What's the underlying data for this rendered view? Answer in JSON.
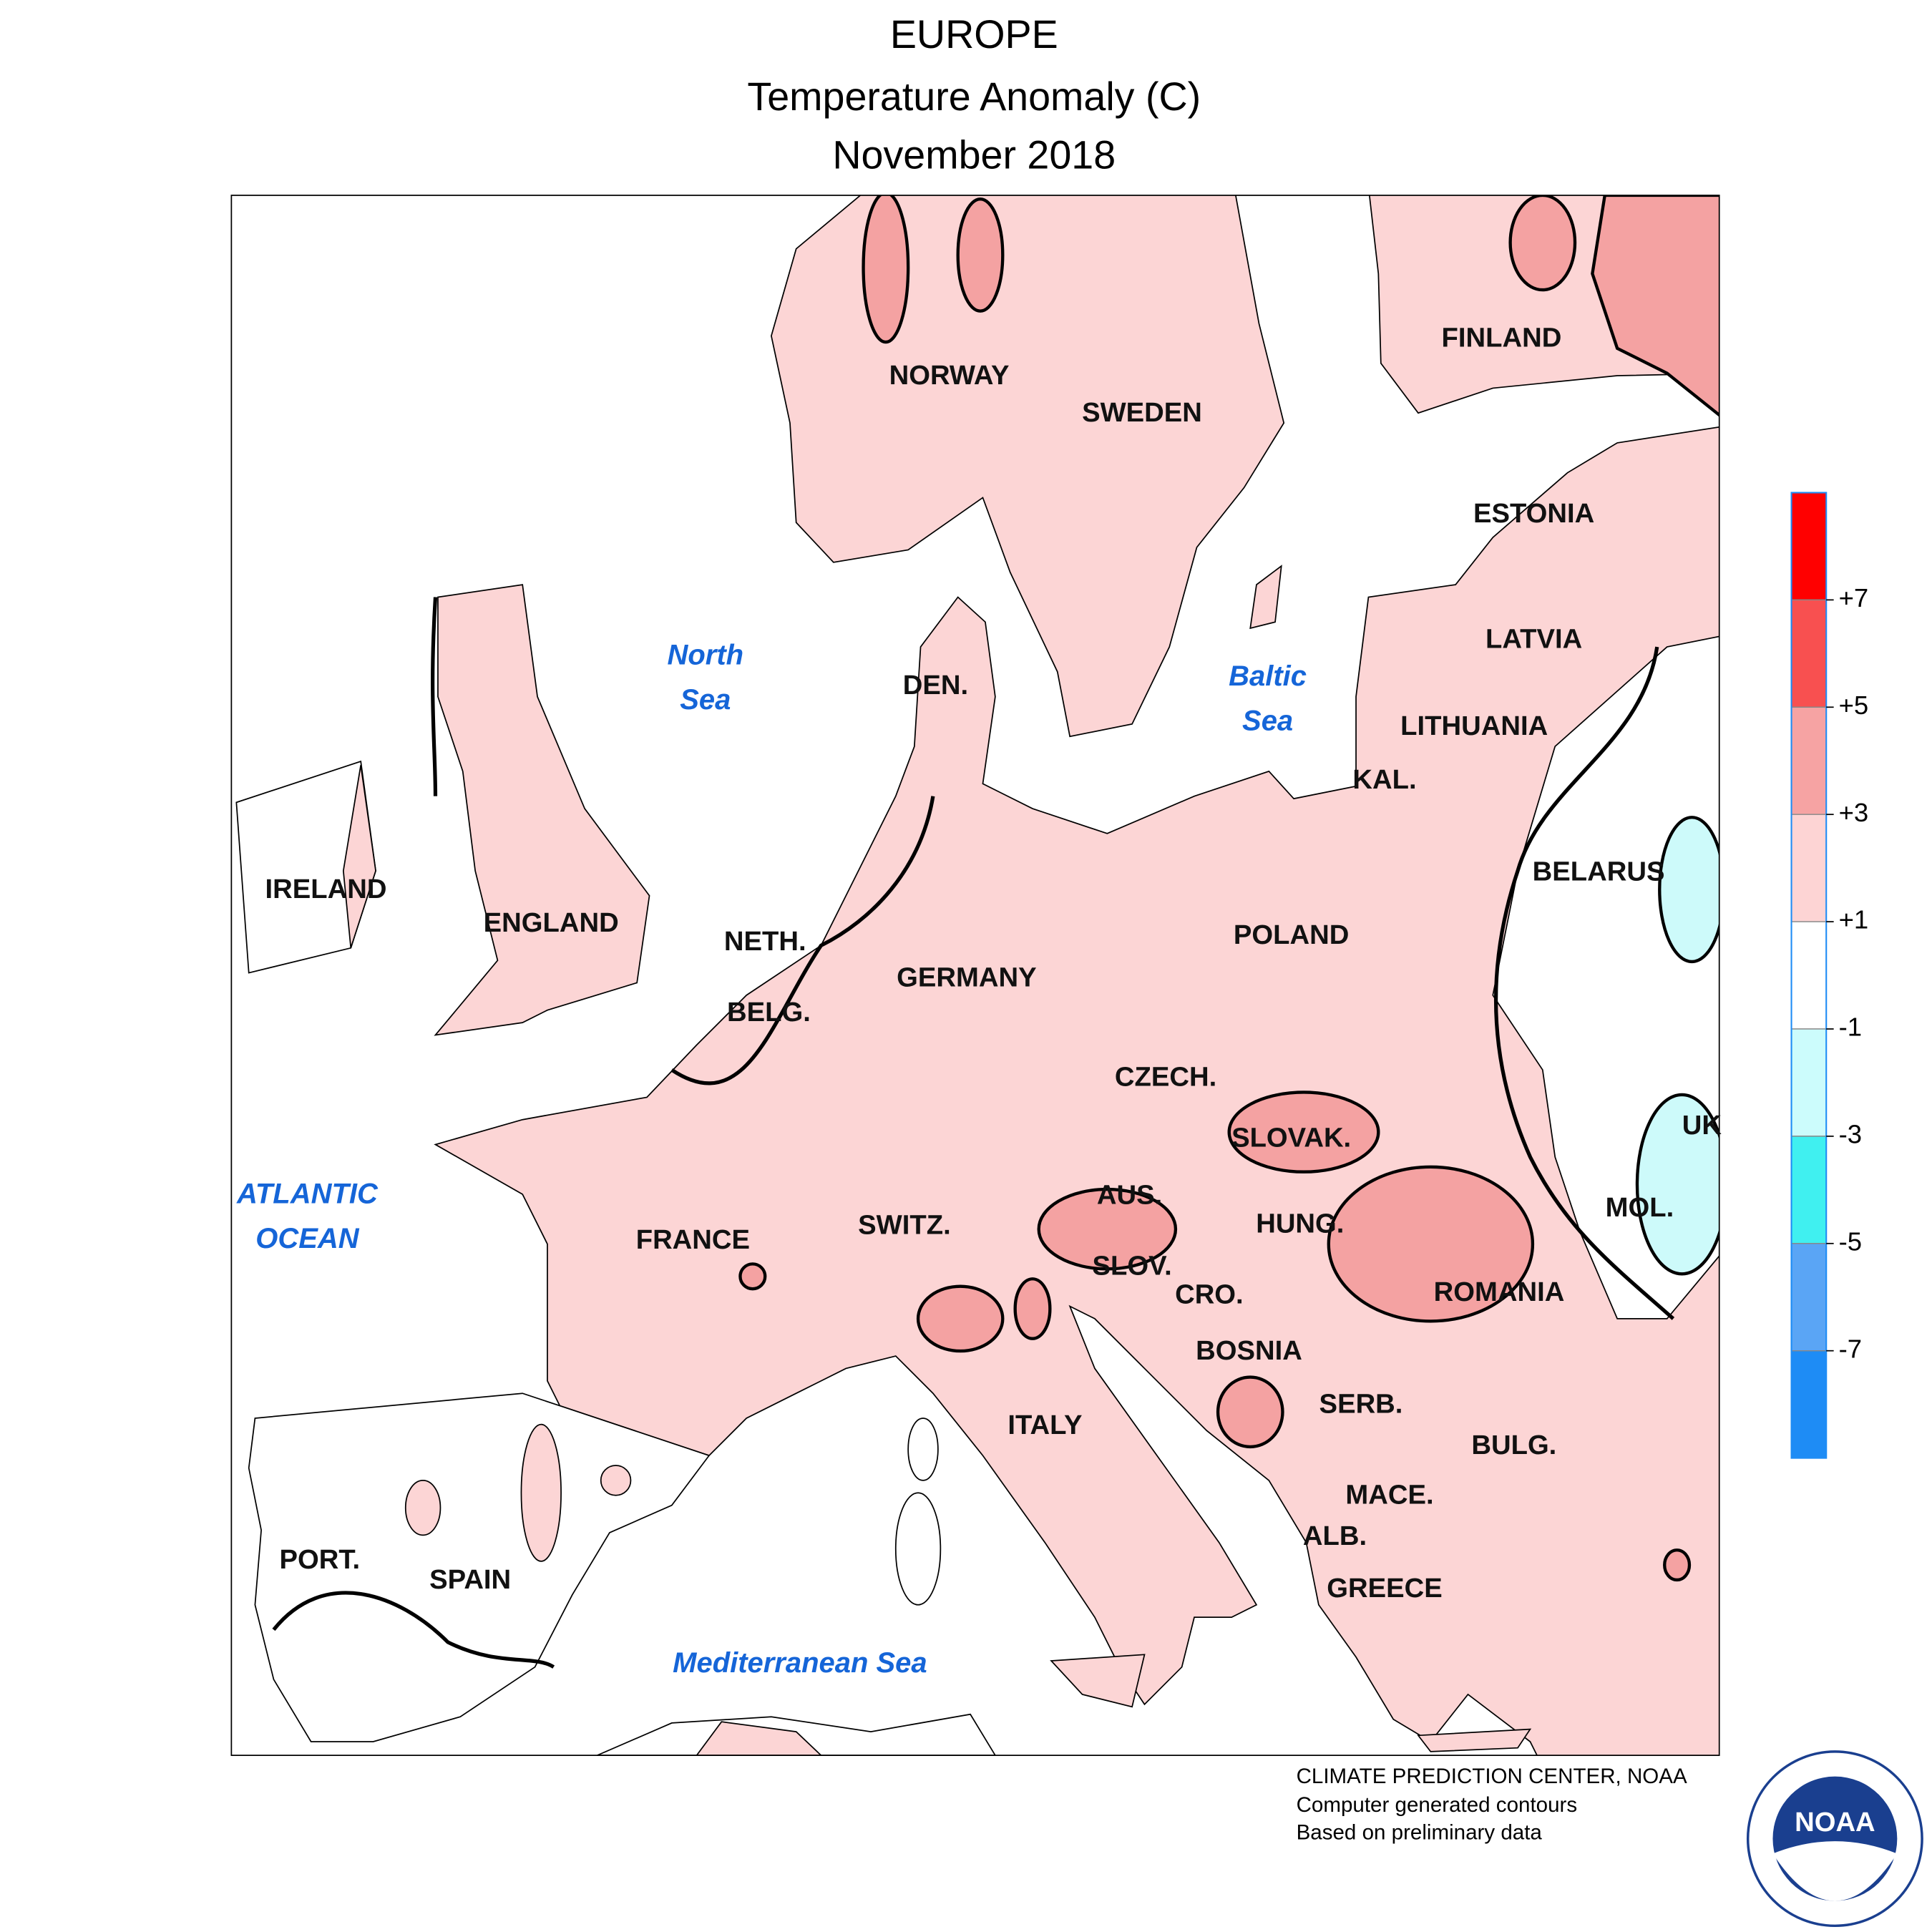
{
  "title": [
    "EUROPE",
    "Temperature Anomaly (C)",
    "November 2018"
  ],
  "labels": {
    "countries": [
      "NORWAY",
      "SWEDEN",
      "FINLAND",
      "ESTONIA",
      "LATVIA",
      "LITHUANIA",
      "KAL.",
      "BELARUS",
      "POLAND",
      "GERMANY",
      "NETH.",
      "BELG.",
      "DEN.",
      "IRELAND",
      "ENGLAND",
      "CZECH.",
      "SLOVAK.",
      "AUS.",
      "HUNG.",
      "SWITZ.",
      "FRANCE",
      "SLOV.",
      "CRO.",
      "ROMANIA",
      "MOL.",
      "UK",
      "BOSNIA",
      "SERB.",
      "ITALY",
      "BULG.",
      "MACE.",
      "ALB.",
      "GREECE",
      "PORT.",
      "SPAIN"
    ],
    "seas": [
      {
        "lines": [
          "North",
          "Sea"
        ]
      },
      {
        "lines": [
          "Baltic",
          "Sea"
        ]
      },
      {
        "lines": [
          "ATLANTIC",
          "OCEAN"
        ]
      },
      {
        "lines": [
          "Mediterranean Sea"
        ]
      }
    ]
  },
  "legend": {
    "ticks": [
      {
        "value": 7,
        "label": "+7"
      },
      {
        "value": 5,
        "label": "+5"
      },
      {
        "value": 3,
        "label": "+3"
      },
      {
        "value": 1,
        "label": "+1"
      },
      {
        "value": -1,
        "label": "-1"
      },
      {
        "value": -3,
        "label": "-3"
      },
      {
        "value": -5,
        "label": "-5"
      },
      {
        "value": -7,
        "label": "-7"
      }
    ],
    "colors": [
      "#ff0000",
      "#f85050",
      "#f6a3a3",
      "#fdd4d4",
      "#ffffff",
      "#ccfcfc",
      "#40f0f0",
      "#5aa5f5",
      "#1e8cf5"
    ]
  },
  "credits": [
    "CLIMATE PREDICTION CENTER, NOAA",
    "Computer generated contours",
    "Based on preliminary data"
  ],
  "logo": "NOAA"
}
